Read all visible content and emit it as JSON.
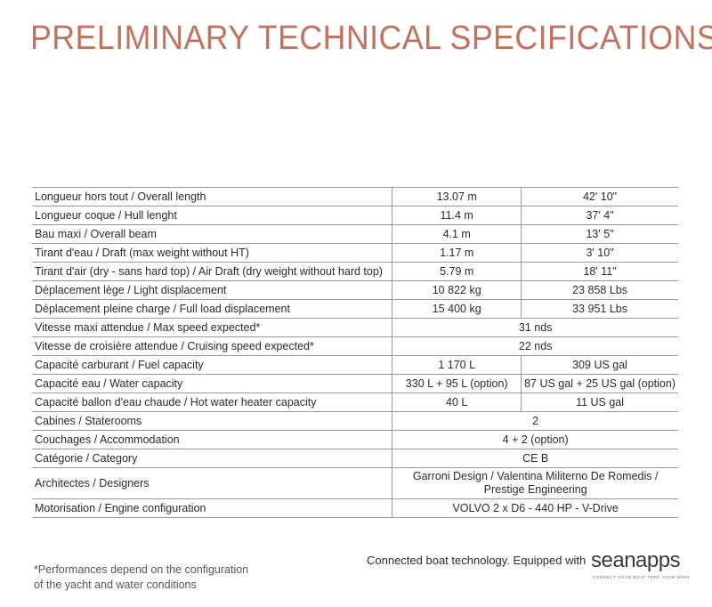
{
  "title": "PRELIMINARY TECHNICAL SPECIFICATIONS",
  "specs": {
    "rows": [
      {
        "label": "Longueur hors tout / Overall length",
        "v1": "13.07 m",
        "v2": "42' 10\""
      },
      {
        "label": "Longueur coque / Hull lenght",
        "v1": "11.4 m",
        "v2": "37' 4\""
      },
      {
        "label": "Bau maxi / Overall beam",
        "v1": "4.1 m",
        "v2": "13' 5\""
      },
      {
        "label": "Tirant d'eau / Draft (max weight without HT)",
        "v1": "1.17 m",
        "v2": "3' 10\""
      },
      {
        "label": "Tirant d'air (dry - sans hard top) / Air Draft (dry weight without hard top)",
        "v1": "5.79 m",
        "v2": "18' 11\""
      },
      {
        "label": "Déplacement lège / Light displacement",
        "v1": "10 822 kg",
        "v2": "23 858 Lbs"
      },
      {
        "label": "Déplacement pleine charge / Full load displacement",
        "v1": "15 400 kg",
        "v2": "33 951  Lbs"
      },
      {
        "label": "Vitesse maxi attendue / Max speed expected*",
        "value": "31 nds"
      },
      {
        "label": "Vitesse de croisière attendue / Cruising speed expected*",
        "value": "22 nds"
      },
      {
        "label": "Capacité carburant / Fuel capacity",
        "v1": "1 170 L",
        "v2": "309 US gal"
      },
      {
        "label": "Capacité eau / Water capacity",
        "v1": "330 L + 95 L (option)",
        "v2": "87 US gal + 25 US gal (option)"
      },
      {
        "label": "Capacité ballon d'eau chaude / Hot water heater capacity",
        "v1": "40 L",
        "v2": "11 US gal"
      },
      {
        "label": "Cabines / Staterooms",
        "value": "2"
      },
      {
        "label": "Couchages / Accommodation",
        "value": "4 + 2 (option)"
      },
      {
        "label": "Catégorie / Category",
        "value": "CE B"
      },
      {
        "label": "Architectes / Designers",
        "value": "Garroni Design / Valentina Militerno De Romedis / Prestige Engineering"
      },
      {
        "label": "Motorisation / Engine configuration",
        "value": "VOLVO 2 x D6 - 440 HP - V-Drive"
      }
    ]
  },
  "footnote": {
    "line1": "*Performances depend on the configuration",
    "line2": "of the yacht and water conditions"
  },
  "connected_text": "Connected boat technology. Equipped with",
  "logo": {
    "wordmark": "seanapps",
    "tagline": "CONNECT YOUR BOAT FREE YOUR MIND"
  }
}
